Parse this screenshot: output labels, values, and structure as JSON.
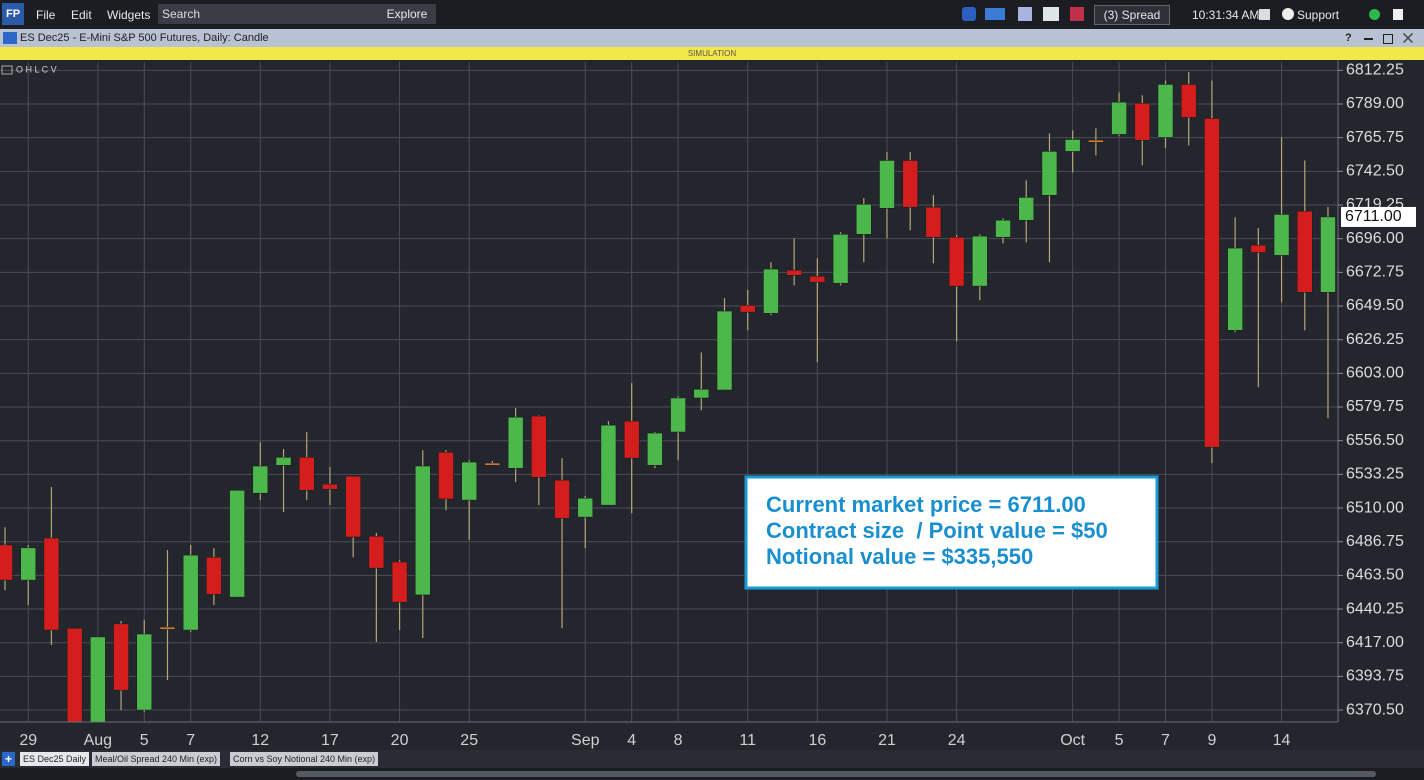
{
  "toolbar": {
    "logo": "FP",
    "menu": [
      "File",
      "Edit",
      "Widgets"
    ],
    "search": "Search",
    "explore": "Explore",
    "spread": "(3) Spread",
    "time": "10:31:34 AM",
    "support": "Support"
  },
  "window": {
    "title": "ES Dec25 - E-Mini S&P 500 Futures, Daily: Candle",
    "mode": "SIMULATION",
    "help": "?"
  },
  "tabs": {
    "add": "+",
    "items": [
      "ES Dec25 Daily",
      "Meal/Oil Spread 240 Min (exp)",
      "Corn vs Soy Notional 240 Min (exp)"
    ]
  },
  "chart_data": {
    "type": "candlestick",
    "ohlcv_label": "O H L C V",
    "categories": [
      null,
      "29",
      null,
      null,
      "Aug",
      null,
      "5",
      null,
      "7",
      null,
      null,
      "12",
      null,
      null,
      "17",
      null,
      null,
      "20",
      null,
      null,
      "25",
      null,
      null,
      null,
      null,
      "Sep",
      null,
      "4",
      null,
      "8",
      null,
      null,
      "11",
      null,
      null,
      "16",
      null,
      null,
      "21",
      null,
      null,
      "24",
      null,
      null,
      null,
      null,
      "Oct",
      null,
      "5",
      null,
      "7",
      null,
      "9",
      null,
      null,
      "14",
      null,
      null
    ],
    "open": [
      6484.5,
      6460.25,
      6489.25,
      6427,
      6362.25,
      6430,
      6370.5,
      6427.75,
      6425.75,
      6476,
      6448.5,
      6520.25,
      6539.5,
      6545,
      6526.5,
      6532,
      6490.5,
      6472.75,
      6450,
      6548.5,
      6515.5,
      6541,
      6537.5,
      6573.5,
      6529.25,
      6503.75,
      6512,
      6570,
      6539.5,
      6562.5,
      6586,
      6591.5,
      6650,
      6644.5,
      6674.25,
      6670,
      6665.25,
      6699,
      6717,
      6750,
      6717.75,
      6697,
      6663.25,
      6697,
      6708.75,
      6726,
      6756.25,
      6764,
      6768,
      6789.5,
      6766,
      6802.5,
      6779,
      6632.75,
      6691.5,
      6684.5,
      6715,
      6659
    ],
    "high": [
      6496.75,
      6484.5,
      6524.5,
      6427,
      6421,
      6432,
      6432.75,
      6481,
      6484.5,
      6482.25,
      6522.25,
      6555.5,
      6550.75,
      6562.5,
      6538.25,
      6532,
      6492.75,
      6474,
      6550,
      6550,
      6543,
      6542.5,
      6579,
      6574,
      6544.5,
      6518.25,
      6570,
      6596.25,
      6562.5,
      6587.25,
      6617.5,
      6655,
      6660.5,
      6679.75,
      6696.25,
      6682.5,
      6700.5,
      6724,
      6755.75,
      6755.75,
      6726,
      6698.5,
      6699,
      6710,
      6736.25,
      6768.75,
      6770.75,
      6772.25,
      6797,
      6795,
      6805.25,
      6811,
      6805.25,
      6710.75,
      6703.25,
      6766,
      6750,
      6717.75
    ],
    "low": [
      6453.25,
      6443,
      6415.5,
      6360.75,
      6360.75,
      6370.5,
      6369.25,
      6391.25,
      6424.5,
      6443,
      6448.5,
      6515.5,
      6507.25,
      6515.5,
      6512,
      6476,
      6417.5,
      6425.75,
      6420.25,
      6508.5,
      6488,
      6539.5,
      6528,
      6512,
      6427,
      6482.25,
      6512,
      6506.5,
      6537.5,
      6543,
      6577.5,
      6591.5,
      6632.75,
      6643.25,
      6663.75,
      6610.75,
      6663.75,
      6679.75,
      6696.25,
      6701.75,
      6679,
      6625.25,
      6653.5,
      6692.75,
      6693.5,
      6679.75,
      6741.75,
      6753.5,
      6766.75,
      6746.75,
      6758.5,
      6760.5,
      6541,
      6631.5,
      6593.5,
      6652,
      6632.75,
      6572
    ],
    "close": [
      6460.25,
      6482.5,
      6425.75,
      6362.25,
      6421,
      6384.25,
      6423,
      6427.75,
      6477.5,
      6450.5,
      6522.25,
      6539,
      6545,
      6522.25,
      6523,
      6490,
      6468.5,
      6445,
      6539,
      6516.25,
      6541.75,
      6541,
      6572.75,
      6531.25,
      6503,
      6516.75,
      6567.25,
      6544.5,
      6561.75,
      6586,
      6592,
      6646,
      6645.25,
      6675,
      6670.75,
      6666,
      6699,
      6719.75,
      6750,
      6717.75,
      6697,
      6663.25,
      6697.75,
      6708.75,
      6724.5,
      6756.25,
      6764.5,
      6764,
      6790.25,
      6764,
      6802.5,
      6779.75,
      6552,
      6689.5,
      6686.5,
      6712.75,
      6659,
      6711
    ],
    "up_color": "#4cb84c",
    "down_color": "#d41e1e",
    "unchanged_color": "#e0873a",
    "wick_color": "#b5a676",
    "ylim": [
      6362.25,
      6818
    ],
    "yticks": [
      6812.25,
      {
        "value": 6789,
        "label": "6789.00"
      },
      6765.75,
      {
        "value": 6742.5,
        "label": "6742.50"
      },
      6719.25,
      {
        "value": 6696,
        "label": "6696.00"
      },
      6672.75,
      {
        "value": 6649.5,
        "label": "6649.50"
      },
      6626.25,
      {
        "value": 6603,
        "label": "6603.00"
      },
      6579.75,
      {
        "value": 6556.5,
        "label": "6556.50"
      },
      6533.25,
      {
        "value": 6510,
        "label": "6510.00"
      },
      6486.75,
      {
        "value": 6463.5,
        "label": "6463.50"
      },
      6440.25,
      {
        "value": 6417,
        "label": "6417.00"
      },
      6393.75,
      {
        "value": 6370.5,
        "label": "6370.50"
      }
    ],
    "grid": true,
    "last_price": {
      "value": 6711,
      "label": "6711.00"
    },
    "annotation": [
      "Current market price = 6711.00",
      "Contract size  / Point value = $50",
      "Notional value = $335,550"
    ]
  }
}
